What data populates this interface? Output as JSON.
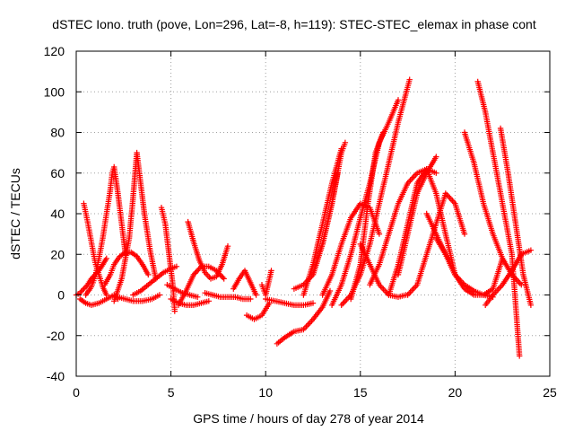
{
  "chart_data": {
    "type": "scatter",
    "title": "dSTEC Iono. truth (pove, Lon=296, Lat=-8, h=119): STEC-STEC_elemax in phase cont",
    "xlabel": "GPS time / hours of day 278 of year 2014",
    "ylabel": "dSTEC  / TECUs",
    "xlim": [
      0,
      25
    ],
    "ylim": [
      -40,
      120
    ],
    "xticks": [
      0,
      5,
      10,
      15,
      20,
      25
    ],
    "yticks": [
      -40,
      -20,
      0,
      20,
      40,
      60,
      80,
      100,
      120
    ],
    "grid": true,
    "marker": "plus",
    "color": "#ff0000",
    "series": [
      {
        "x": [
          0.0,
          0.2,
          0.4,
          0.6,
          0.8,
          1.0,
          1.2,
          1.4,
          1.6
        ],
        "y": [
          0,
          1,
          3,
          5,
          8,
          10,
          12,
          15,
          18
        ]
      },
      {
        "x": [
          0.4,
          0.6,
          0.8,
          1.0,
          1.2,
          1.4,
          1.6
        ],
        "y": [
          45,
          36,
          26,
          16,
          10,
          4,
          0
        ]
      },
      {
        "x": [
          0.5,
          0.8,
          1.0,
          1.2,
          1.4,
          1.6,
          1.8,
          1.9,
          2.0,
          2.2,
          2.4,
          2.6
        ],
        "y": [
          0,
          4,
          9,
          18,
          28,
          40,
          52,
          60,
          63,
          50,
          35,
          20
        ]
      },
      {
        "x": [
          0.2,
          0.5,
          0.8,
          1.2,
          1.6,
          2.0,
          2.2
        ],
        "y": [
          -2,
          -4,
          -5,
          -4,
          -2,
          0,
          -2
        ]
      },
      {
        "x": [
          1.5,
          1.8,
          2.0,
          2.3,
          2.6,
          2.9,
          3.2,
          3.5,
          3.8
        ],
        "y": [
          5,
          10,
          15,
          19,
          21,
          21,
          19,
          15,
          10
        ]
      },
      {
        "x": [
          2.0,
          2.4,
          2.8,
          3.0,
          3.2,
          3.4,
          3.6,
          3.9,
          4.2
        ],
        "y": [
          -3,
          8,
          28,
          48,
          70,
          55,
          40,
          22,
          8
        ]
      },
      {
        "x": [
          2.2,
          2.6,
          3.0,
          3.5,
          4.0,
          4.4
        ],
        "y": [
          -1,
          -2,
          -3,
          -3,
          -2,
          0
        ]
      },
      {
        "x": [
          3.0,
          3.4,
          3.8,
          4.2,
          4.6,
          5.0,
          5.3
        ],
        "y": [
          0,
          2,
          5,
          8,
          11,
          13,
          14
        ]
      },
      {
        "x": [
          4.5,
          4.7,
          4.9,
          5.1,
          5.2
        ],
        "y": [
          43,
          35,
          20,
          5,
          -8
        ]
      },
      {
        "x": [
          5.0,
          5.4,
          5.8,
          6.2,
          6.6,
          7.0
        ],
        "y": [
          -2,
          -4,
          -5,
          -5,
          -4,
          -3
        ]
      },
      {
        "x": [
          4.8,
          5.2,
          5.6,
          6.0,
          6.4
        ],
        "y": [
          5,
          3,
          1,
          0,
          -1
        ]
      },
      {
        "x": [
          5.4,
          5.8,
          6.2,
          6.6,
          7.0,
          7.4,
          7.8
        ],
        "y": [
          -5,
          2,
          10,
          14,
          14,
          12,
          8
        ]
      },
      {
        "x": [
          5.9,
          6.2,
          6.5,
          6.8,
          7.1,
          7.4,
          7.7,
          8.0
        ],
        "y": [
          36,
          26,
          17,
          11,
          8,
          9,
          15,
          24
        ]
      },
      {
        "x": [
          6.8,
          7.2,
          7.6,
          8.0,
          8.4,
          8.8,
          9.2
        ],
        "y": [
          1,
          0,
          -1,
          -1,
          -1,
          -2,
          -2
        ]
      },
      {
        "x": [
          8.3,
          8.6,
          8.9,
          9.2,
          9.5
        ],
        "y": [
          3,
          8,
          12,
          6,
          0
        ]
      },
      {
        "x": [
          9.0,
          9.4,
          9.8,
          10.2
        ],
        "y": [
          -10,
          -12,
          -10,
          -4
        ]
      },
      {
        "x": [
          9.8,
          10.0,
          10.3
        ],
        "y": [
          5,
          0,
          12
        ]
      },
      {
        "x": [
          10.0,
          10.5,
          11.0,
          11.5,
          12.0,
          12.5
        ],
        "y": [
          -2,
          -3,
          -4,
          -5,
          -5,
          -4
        ]
      },
      {
        "x": [
          10.6,
          11.0,
          11.5,
          12.0,
          12.5,
          13.0,
          13.4
        ],
        "y": [
          -24,
          -21,
          -18,
          -17,
          -12,
          -6,
          2
        ]
      },
      {
        "x": [
          11.5,
          12.0,
          12.5,
          13.0,
          13.5,
          14.0,
          14.2
        ],
        "y": [
          3,
          5,
          10,
          25,
          45,
          70,
          75
        ]
      },
      {
        "x": [
          12.0,
          12.5,
          13.0,
          13.5,
          14.0
        ],
        "y": [
          0,
          15,
          35,
          55,
          72
        ]
      },
      {
        "x": [
          12.5,
          13.0,
          13.5,
          13.8
        ],
        "y": [
          10,
          25,
          45,
          60
        ]
      },
      {
        "x": [
          13.0,
          13.5,
          14.0,
          14.5,
          15.0,
          15.5,
          16.0
        ],
        "y": [
          0,
          10,
          25,
          38,
          45,
          43,
          30
        ]
      },
      {
        "x": [
          13.5,
          14.0,
          14.5,
          15.0,
          15.5,
          16.0,
          16.5,
          17.0
        ],
        "y": [
          -5,
          5,
          20,
          38,
          55,
          75,
          85,
          96
        ]
      },
      {
        "x": [
          14.0,
          14.5,
          15.0,
          15.5,
          16.0,
          16.5,
          17.0,
          17.6
        ],
        "y": [
          -5,
          0,
          10,
          25,
          45,
          65,
          85,
          106
        ]
      },
      {
        "x": [
          14.5,
          15.0,
          15.4,
          15.8,
          16.2
        ],
        "y": [
          -2,
          15,
          45,
          70,
          80
        ]
      },
      {
        "x": [
          15.0,
          15.5,
          16.0,
          16.5,
          17.0,
          17.4
        ],
        "y": [
          25,
          15,
          5,
          0,
          -1,
          0
        ]
      },
      {
        "x": [
          15.5,
          16.0,
          16.5,
          17.0,
          17.5,
          18.0,
          18.5,
          19.0
        ],
        "y": [
          5,
          15,
          30,
          45,
          55,
          60,
          62,
          60
        ]
      },
      {
        "x": [
          16.5,
          17.0,
          17.5,
          18.0,
          18.5,
          19.0,
          19.5,
          20.0
        ],
        "y": [
          0,
          15,
          35,
          55,
          62,
          50,
          30,
          10
        ]
      },
      {
        "x": [
          17.0,
          17.5,
          18.0,
          18.5,
          19.0
        ],
        "y": [
          10,
          30,
          50,
          60,
          68
        ]
      },
      {
        "x": [
          17.5,
          18.0,
          18.5,
          19.0,
          19.5,
          20.0,
          20.5
        ],
        "y": [
          0,
          5,
          20,
          35,
          50,
          45,
          30
        ]
      },
      {
        "x": [
          18.5,
          19.0,
          19.5,
          20.0,
          20.5,
          21.0,
          21.5,
          22.0
        ],
        "y": [
          40,
          30,
          20,
          10,
          5,
          2,
          0,
          -1
        ]
      },
      {
        "x": [
          19.0,
          19.5,
          20.0,
          20.5,
          21.0,
          21.5,
          22.0,
          22.5
        ],
        "y": [
          28,
          20,
          10,
          3,
          0,
          0,
          3,
          18
        ]
      },
      {
        "x": [
          20.5,
          21.0,
          21.5,
          22.0,
          22.5,
          23.0,
          23.5
        ],
        "y": [
          80,
          65,
          45,
          30,
          18,
          10,
          5
        ]
      },
      {
        "x": [
          21.2,
          21.6,
          22.0,
          22.5,
          23.0,
          23.4
        ],
        "y": [
          105,
          90,
          70,
          45,
          20,
          -30
        ]
      },
      {
        "x": [
          22.4,
          22.8,
          23.2,
          23.6,
          24.0
        ],
        "y": [
          82,
          60,
          35,
          10,
          -5
        ]
      },
      {
        "x": [
          21.6,
          22.0,
          22.5,
          23.0,
          23.5,
          24.0
        ],
        "y": [
          -5,
          0,
          5,
          12,
          20,
          22
        ]
      }
    ]
  }
}
